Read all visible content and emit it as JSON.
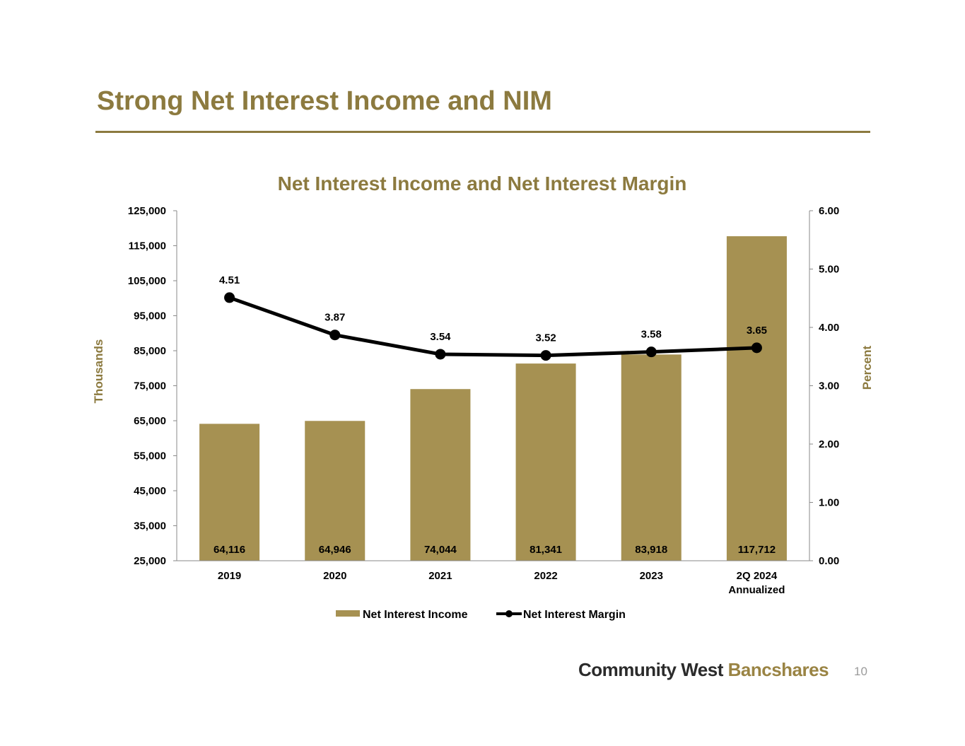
{
  "slide": {
    "title": "Strong Net Interest Income and NIM",
    "brand_dark": "Community West",
    "brand_gold": "Bancshares",
    "page_number": "10"
  },
  "colors": {
    "accent": "#8c7a3f",
    "bar": "#a69152",
    "line": "#000000"
  },
  "chart_data": {
    "type": "bar",
    "title": "Net Interest Income and Net Interest Margin",
    "ylabel": "Thousands",
    "y2label": "Percent",
    "categories": [
      "2019",
      "2020",
      "2021",
      "2022",
      "2023",
      "2Q 2024\nAnnualized"
    ],
    "ylim": [
      25000,
      125000
    ],
    "y_ticks": [
      "25,000",
      "35,000",
      "45,000",
      "55,000",
      "65,000",
      "75,000",
      "85,000",
      "95,000",
      "105,000",
      "115,000",
      "125,000"
    ],
    "y2lim": [
      0,
      6
    ],
    "y2_ticks": [
      "0.00",
      "1.00",
      "2.00",
      "3.00",
      "4.00",
      "5.00",
      "6.00"
    ],
    "series": [
      {
        "name": "Net Interest Income",
        "type": "bar",
        "axis": "left",
        "values": [
          64116,
          64946,
          74044,
          81341,
          83918,
          117712
        ],
        "labels": [
          "64,116",
          "64,946",
          "74,044",
          "81,341",
          "83,918",
          "117,712"
        ]
      },
      {
        "name": "Net Interest Margin",
        "type": "line",
        "axis": "right",
        "values": [
          4.51,
          3.87,
          3.54,
          3.52,
          3.58,
          3.65
        ],
        "labels": [
          "4.51",
          "3.87",
          "3.54",
          "3.52",
          "3.58",
          "3.65"
        ]
      }
    ],
    "grid": false,
    "legend": "bottom"
  }
}
